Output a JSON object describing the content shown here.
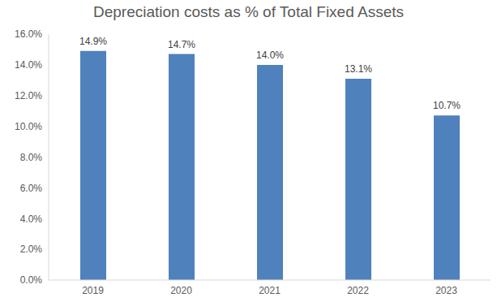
{
  "chart_data": {
    "type": "bar",
    "title": "Depreciation costs as % of Total Fixed Assets",
    "categories": [
      "2019",
      "2020",
      "2021",
      "2022",
      "2023"
    ],
    "values": [
      14.9,
      14.7,
      14.0,
      13.1,
      10.7
    ],
    "value_labels": [
      "14.9%",
      "14.7%",
      "14.0%",
      "13.1%",
      "10.7%"
    ],
    "color": "#4f81bd",
    "ylim": [
      0,
      16
    ],
    "yticks": [
      {
        "value": 0,
        "label": "0.0%"
      },
      {
        "value": 2,
        "label": "2.0%"
      },
      {
        "value": 4,
        "label": "4.0%"
      },
      {
        "value": 6,
        "label": "6.0%"
      },
      {
        "value": 8,
        "label": "8.0%"
      },
      {
        "value": 10,
        "label": "10.0%"
      },
      {
        "value": 12,
        "label": "12.0%"
      },
      {
        "value": 14,
        "label": "14.0%"
      },
      {
        "value": 16,
        "label": "16.0%"
      }
    ],
    "grid": false,
    "data_labels": true
  }
}
